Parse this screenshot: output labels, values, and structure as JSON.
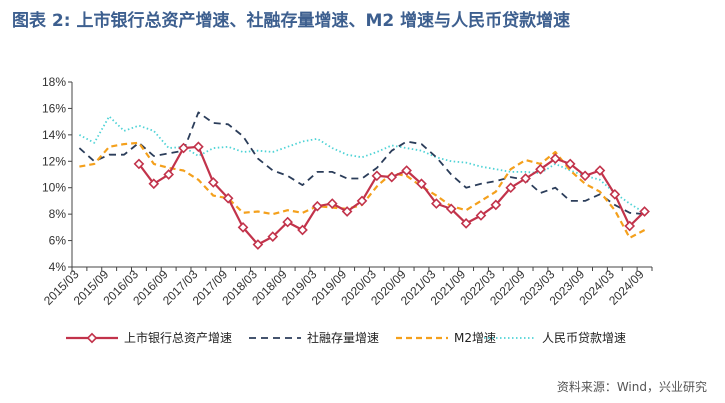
{
  "title": "图表 2:   上市银行总资产增速、社融存量增速、M2 增速与人民币贷款增速",
  "source": "资料来源：Wind，兴业研究",
  "colors": {
    "title": "#3d5f8f",
    "bank": "#c2334b",
    "social": "#2b3d5a",
    "m2": "#f4a01c",
    "loan": "#4fd3d6"
  },
  "chart_data": {
    "type": "line",
    "x": [
      "2015/03",
      "2015/06",
      "2015/09",
      "2015/12",
      "2016/03",
      "2016/06",
      "2016/09",
      "2016/12",
      "2017/03",
      "2017/06",
      "2017/09",
      "2017/12",
      "2018/03",
      "2018/06",
      "2018/09",
      "2018/12",
      "2019/03",
      "2019/06",
      "2019/09",
      "2019/12",
      "2020/03",
      "2020/06",
      "2020/09",
      "2020/12",
      "2021/03",
      "2021/06",
      "2021/09",
      "2021/12",
      "2022/03",
      "2022/06",
      "2022/09",
      "2022/12",
      "2023/03",
      "2023/06",
      "2023/09",
      "2023/12",
      "2024/03",
      "2024/06",
      "2024/09"
    ],
    "xticks": [
      "2015/03",
      "2015/09",
      "2016/03",
      "2016/09",
      "2017/03",
      "2017/09",
      "2018/03",
      "2018/09",
      "2019/03",
      "2019/09",
      "2020/03",
      "2020/09",
      "2021/03",
      "2021/09",
      "2022/03",
      "2022/09",
      "2023/03",
      "2023/09",
      "2024/03",
      "2024/09"
    ],
    "yticks": [
      "4%",
      "6%",
      "8%",
      "10%",
      "12%",
      "14%",
      "16%",
      "18%"
    ],
    "ylim": [
      4,
      18
    ],
    "grid": false,
    "legend_position": "bottom",
    "series": [
      {
        "name": "上市银行总资产增速",
        "style": "solid-diamond",
        "values": [
          null,
          null,
          null,
          null,
          11.8,
          10.3,
          11.0,
          13.0,
          13.1,
          10.4,
          9.2,
          7.0,
          5.7,
          6.3,
          7.4,
          6.8,
          8.6,
          8.8,
          8.2,
          9.0,
          10.9,
          10.8,
          11.3,
          10.3,
          8.8,
          8.4,
          7.3,
          7.9,
          8.7,
          10.0,
          10.7,
          11.4,
          12.2,
          11.8,
          10.9,
          11.3,
          9.5,
          7.1,
          8.2
        ]
      },
      {
        "name": "社融存量增速",
        "style": "dashed",
        "values": [
          13.0,
          12.0,
          12.5,
          12.5,
          13.4,
          12.4,
          12.6,
          12.8,
          15.7,
          14.9,
          14.8,
          13.9,
          12.2,
          11.3,
          10.9,
          10.2,
          11.2,
          11.2,
          10.7,
          10.7,
          11.5,
          12.8,
          13.5,
          13.3,
          12.3,
          11.0,
          10.0,
          10.3,
          10.5,
          10.8,
          10.6,
          9.6,
          10.0,
          9.0,
          9.0,
          9.5,
          8.7,
          8.1,
          8.0
        ]
      },
      {
        "name": "M2增速",
        "style": "dash-long",
        "values": [
          11.6,
          11.8,
          13.1,
          13.3,
          13.4,
          11.8,
          11.5,
          11.3,
          10.6,
          9.4,
          9.2,
          8.1,
          8.2,
          8.0,
          8.3,
          8.1,
          8.6,
          8.5,
          8.4,
          8.7,
          10.1,
          11.1,
          10.9,
          10.1,
          9.4,
          8.6,
          8.3,
          9.0,
          9.7,
          11.4,
          12.1,
          11.8,
          12.7,
          11.3,
          10.3,
          9.7,
          8.3,
          6.2,
          6.8
        ]
      },
      {
        "name": "人民币贷款增速",
        "style": "dotted",
        "values": [
          14.0,
          13.4,
          15.4,
          14.3,
          14.7,
          14.3,
          13.0,
          13.1,
          12.4,
          13.0,
          13.1,
          12.7,
          12.8,
          12.7,
          13.1,
          13.5,
          13.7,
          13.0,
          12.5,
          12.3,
          12.7,
          13.2,
          13.0,
          12.8,
          12.3,
          12.0,
          11.9,
          11.6,
          11.4,
          11.2,
          11.2,
          11.1,
          11.8,
          11.3,
          10.9,
          10.6,
          9.6,
          8.8,
          8.1
        ]
      }
    ]
  }
}
